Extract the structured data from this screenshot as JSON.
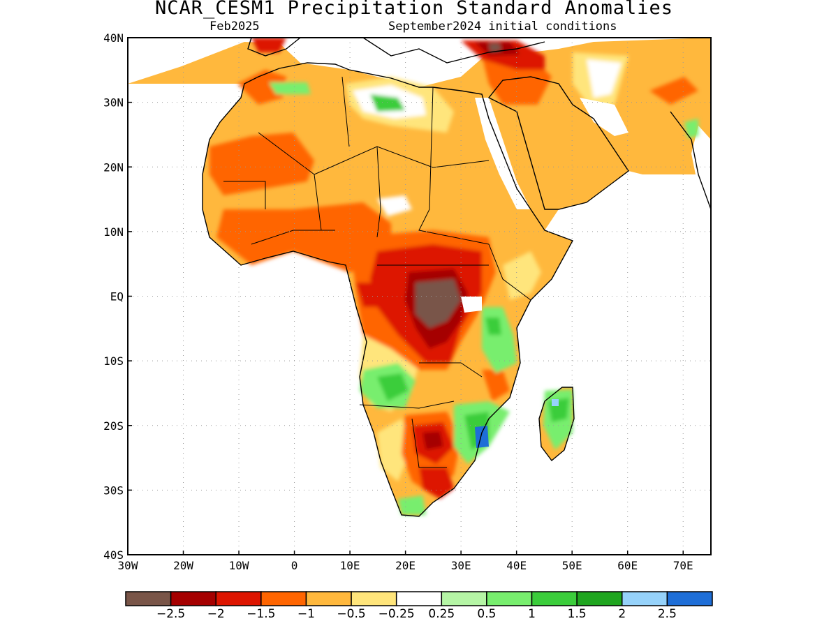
{
  "title": "NCAR_CESM1 Precipitation Standard Anomalies",
  "subtitle_left": "Feb2025",
  "subtitle_right": "September2024 initial conditions",
  "lat_labels": [
    "40N",
    "30N",
    "20N",
    "10N",
    "EQ",
    "10S",
    "20S",
    "30S",
    "40S"
  ],
  "lon_labels": [
    "30W",
    "20W",
    "10W",
    "0",
    "10E",
    "20E",
    "30E",
    "40E",
    "50E",
    "60E",
    "70E"
  ],
  "colorbar": {
    "colors": [
      "#795548",
      "#a50000",
      "#dd1500",
      "#ff6500",
      "#ffb83d",
      "#ffe57b",
      "#ffffff",
      "#b5f5a5",
      "#78ee6e",
      "#3bcd3b",
      "#1fa51f",
      "#96d2fa",
      "#1e6ed7"
    ],
    "labels": [
      "−2.5",
      "−2",
      "−1.5",
      "−1",
      "−0.5",
      "−0.25",
      "0.25",
      "0.5",
      "1",
      "1.5",
      "2",
      "2.5"
    ]
  },
  "colors": {
    "land_outline": "#000000",
    "grid": "#9a9a9a"
  }
}
